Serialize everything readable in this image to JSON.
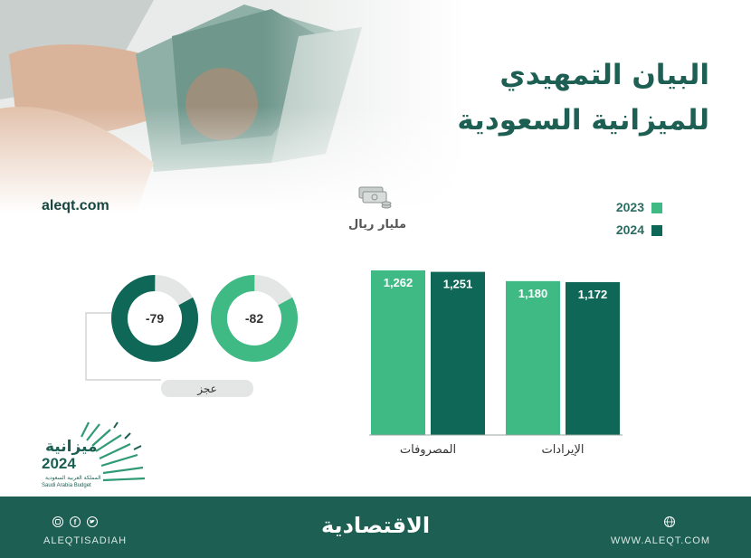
{
  "header": {
    "title_line1": "البيان التمهيدي",
    "title_line2": "للميزانية السعودية",
    "site": "aleqt.com"
  },
  "legend": [
    {
      "label": "2023",
      "color": "#3fba85"
    },
    {
      "label": "2024",
      "color": "#0f6757"
    }
  ],
  "unit_label": "مليار ريال",
  "unit_icon": "money-stack-icon",
  "chart_data": [
    {
      "type": "bar",
      "categories": [
        "المصروفات",
        "الإيرادات"
      ],
      "series": [
        {
          "name": "2023",
          "values": [
            1262,
            1180
          ]
        },
        {
          "name": "2024",
          "values": [
            1251,
            1172
          ]
        }
      ],
      "data_labels": [
        [
          "1,262",
          "1,180"
        ],
        [
          "1,251",
          "1,172"
        ]
      ],
      "ylim": [
        0,
        1262
      ],
      "grid": false,
      "legend": "top-right"
    },
    {
      "type": "pie",
      "label": "عجز",
      "series": [
        {
          "name": "2023",
          "value": -82,
          "display": "-82",
          "ring_fill": 0.83
        },
        {
          "name": "2024",
          "value": -79,
          "display": "-79",
          "ring_fill": 0.83
        }
      ]
    }
  ],
  "branding": {
    "budget_word": "ميزانية",
    "budget_year": "2024",
    "budget_ar_sub": "المملكة العربية السعودية",
    "budget_en_sub": "Saudi Arabia Budget"
  },
  "footer": {
    "brand": "الاقتصادية",
    "social_handle": "ALEQTISADIAH",
    "website": "WWW.ALEQT.COM",
    "social_icons": [
      "instagram-icon",
      "facebook-icon",
      "twitter-icon"
    ],
    "web_icon": "globe-icon"
  }
}
